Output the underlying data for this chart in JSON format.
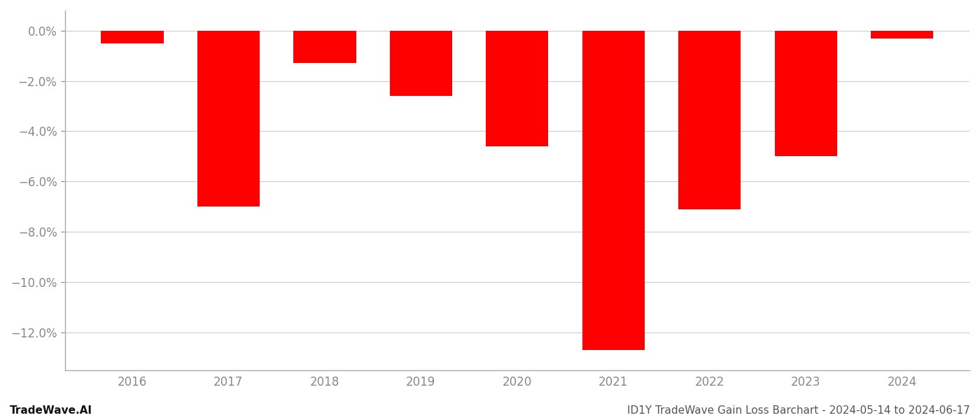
{
  "years": [
    2016,
    2017,
    2018,
    2019,
    2020,
    2021,
    2022,
    2023,
    2024
  ],
  "values": [
    -0.5,
    -7.0,
    -1.3,
    -2.6,
    -4.6,
    -12.7,
    -7.1,
    -5.0,
    -0.3
  ],
  "bar_color": "#ff0000",
  "background_color": "#ffffff",
  "grid_color": "#cccccc",
  "tick_color": "#888888",
  "ylim": [
    -13.5,
    0.8
  ],
  "yticks": [
    0.0,
    -2.0,
    -4.0,
    -6.0,
    -8.0,
    -10.0,
    -12.0
  ],
  "tick_fontsize": 12,
  "footer_left": "TradeWave.AI",
  "footer_right": "ID1Y TradeWave Gain Loss Barchart - 2024-05-14 to 2024-06-17",
  "footer_fontsize": 11
}
